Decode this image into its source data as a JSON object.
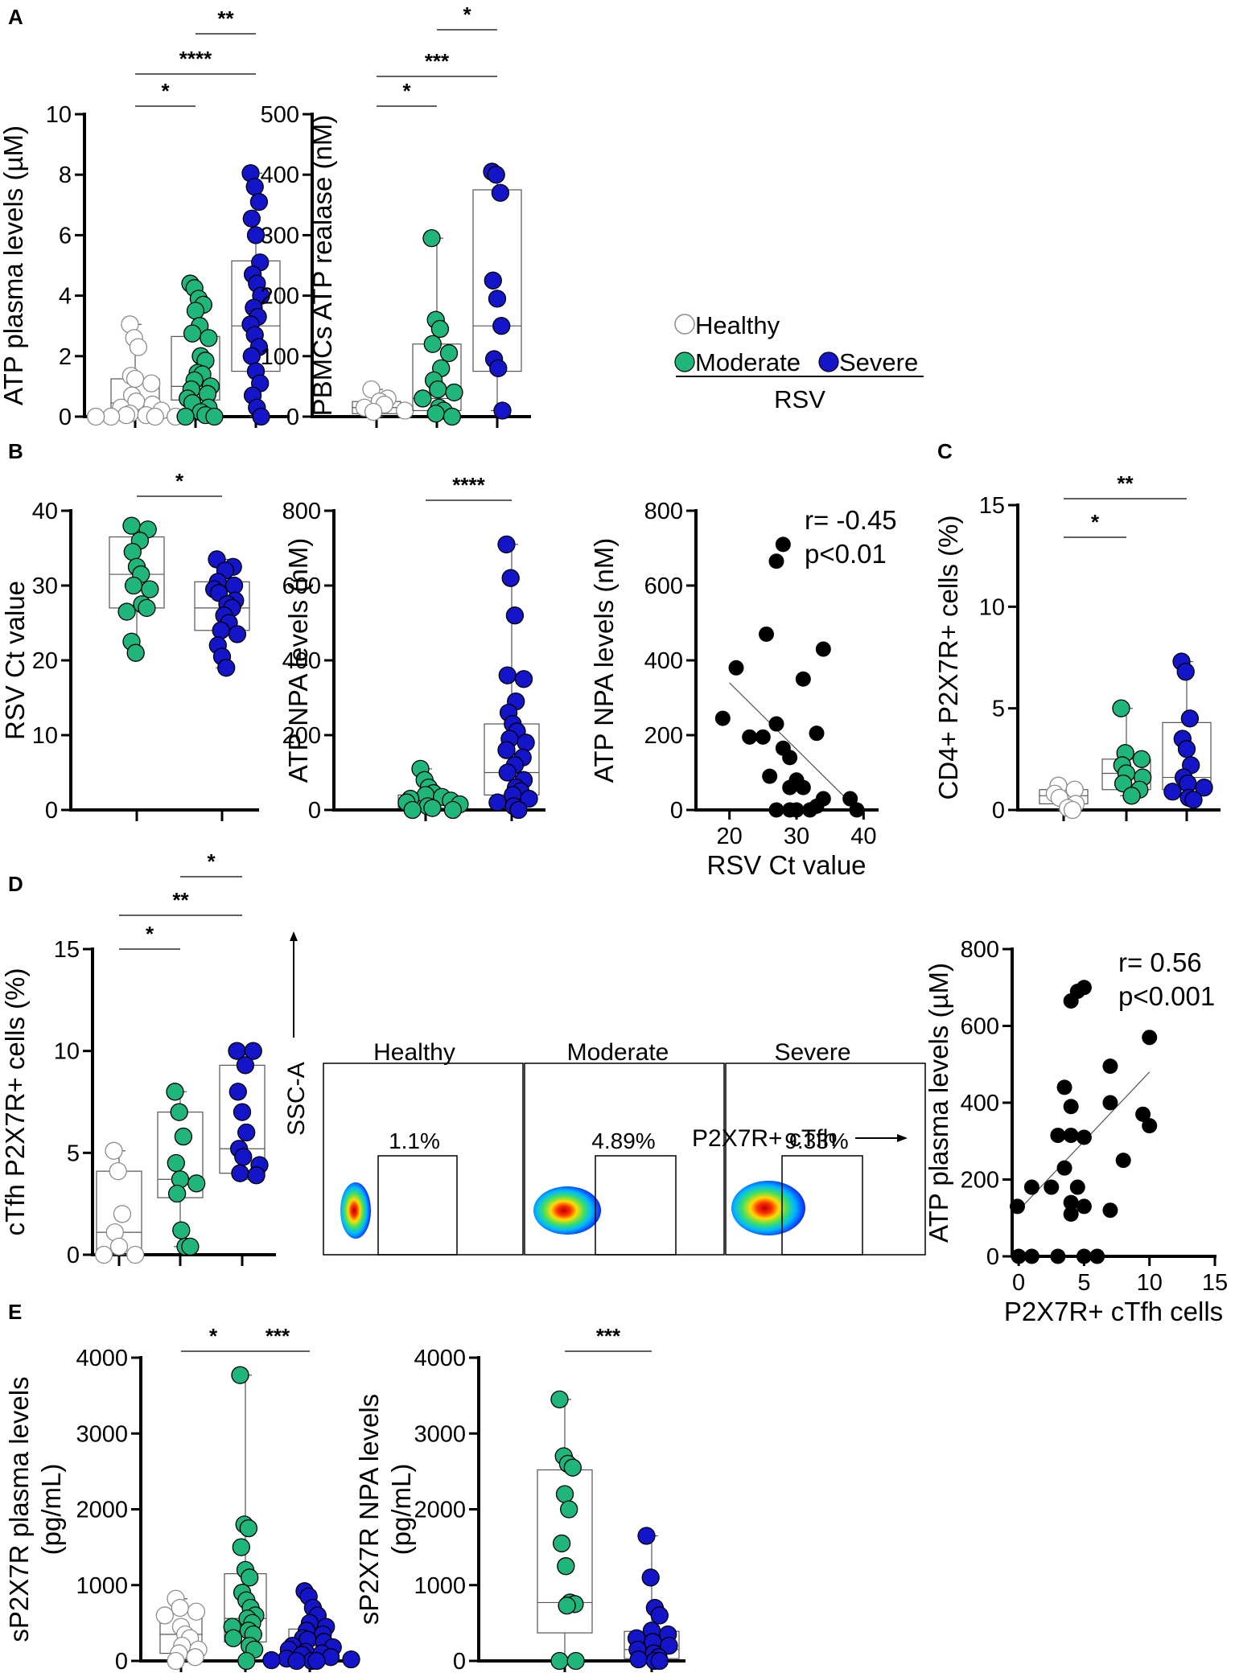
{
  "colors": {
    "healthy_fill": "#ffffff",
    "healthy_edge": "#8c8c8c",
    "moderate": "#20b57b",
    "severe": "#1414c8",
    "black": "#000000"
  },
  "panel_labels": {
    "A": "A",
    "B": "B",
    "C": "C",
    "D": "D",
    "E": "E"
  },
  "legend": {
    "healthy": "Healthy",
    "moderate": "Moderate",
    "severe": "Severe",
    "group": "RSV"
  },
  "flow": {
    "titles": [
      "Healthy",
      "Moderate",
      "Severe"
    ],
    "percents": [
      "1.1%",
      "4.89%",
      "9.33%"
    ],
    "ylabel": "SSC-A",
    "xlabel": "P2X7R+ cTfh"
  },
  "chart_data": [
    {
      "id": "A1",
      "type": "box_scatter",
      "ylabel": "ATP plasma levels (µM)",
      "ylim": [
        0,
        10
      ],
      "yticks": [
        0,
        2,
        4,
        6,
        8,
        10
      ],
      "groups": [
        {
          "name": "Healthy",
          "color": "healthy",
          "q1": 0.25,
          "median": 0.45,
          "q3": 1.25,
          "min": 0.0,
          "max": 3.05,
          "points": [
            3.05,
            2.6,
            2.3,
            1.35,
            1.25,
            1.1,
            0.7,
            0.5,
            0.4,
            0.3,
            0.2,
            0.1,
            0.05,
            0.05,
            0.0,
            0.0,
            0.0,
            0.0
          ]
        },
        {
          "name": "Moderate",
          "color": "moderate",
          "q1": 0.55,
          "median": 1.0,
          "q3": 2.65,
          "min": 0.0,
          "max": 4.4,
          "points": [
            4.4,
            4.25,
            3.9,
            3.7,
            3.5,
            3.0,
            2.75,
            2.6,
            2.0,
            1.85,
            1.45,
            1.4,
            1.2,
            1.0,
            0.9,
            0.75,
            0.6,
            0.45,
            0.3,
            0.15,
            0.05,
            0.0,
            0.0
          ]
        },
        {
          "name": "Severe",
          "color": "severe",
          "q1": 1.5,
          "median": 3.0,
          "q3": 5.15,
          "min": 0.0,
          "max": 8.05,
          "points": [
            8.05,
            7.6,
            7.1,
            6.55,
            6.0,
            5.1,
            4.7,
            4.4,
            4.0,
            3.6,
            3.3,
            3.05,
            2.7,
            2.3,
            2.0,
            1.5,
            1.1,
            0.7,
            0.3,
            0.0
          ]
        }
      ],
      "sig": [
        {
          "from": 0,
          "to": 1,
          "label": "*"
        },
        {
          "from": 0,
          "to": 2,
          "label": "****"
        },
        {
          "from": 1,
          "to": 2,
          "label": "**"
        }
      ]
    },
    {
      "id": "A2",
      "type": "box_scatter",
      "ylabel": "PBMCs ATP realase (nM)",
      "ylim": [
        0,
        500
      ],
      "yticks": [
        0,
        100,
        200,
        300,
        400,
        500
      ],
      "groups": [
        {
          "name": "Healthy",
          "color": "healthy",
          "q1": 5,
          "median": 15,
          "q3": 25,
          "min": 0,
          "max": 45,
          "points": [
            45,
            30,
            25,
            20,
            15,
            10,
            8
          ]
        },
        {
          "name": "Moderate",
          "color": "moderate",
          "q1": 10,
          "median": 30,
          "q3": 120,
          "min": 0,
          "max": 295,
          "points": [
            295,
            160,
            145,
            120,
            105,
            80,
            60,
            45,
            40,
            30,
            15,
            10,
            5,
            0
          ]
        },
        {
          "name": "Severe",
          "color": "severe",
          "q1": 75,
          "median": 150,
          "q3": 375,
          "min": 10,
          "max": 405,
          "points": [
            405,
            400,
            370,
            225,
            195,
            150,
            95,
            80,
            10
          ]
        }
      ],
      "sig": [
        {
          "from": 0,
          "to": 1,
          "label": "*"
        },
        {
          "from": 0,
          "to": 2,
          "label": "***"
        },
        {
          "from": 1,
          "to": 2,
          "label": "*"
        }
      ]
    },
    {
      "id": "B1",
      "type": "box_scatter",
      "ylabel": "RSV Ct value",
      "ylim": [
        0,
        40
      ],
      "yticks": [
        0,
        10,
        20,
        30,
        40
      ],
      "groups": [
        {
          "name": "Moderate",
          "color": "moderate",
          "q1": 27.0,
          "median": 31.5,
          "q3": 36.5,
          "min": 21.0,
          "max": 38.0,
          "points": [
            38.0,
            37.5,
            36.0,
            34.5,
            32.5,
            31.5,
            30.0,
            29.5,
            27.5,
            27.0,
            26.5,
            22.5,
            21.0
          ]
        },
        {
          "name": "Severe",
          "color": "severe",
          "q1": 24.0,
          "median": 27.0,
          "q3": 30.5,
          "min": 19.0,
          "max": 33.5,
          "points": [
            33.5,
            32.5,
            32.0,
            30.5,
            30.0,
            29.5,
            29.0,
            28.0,
            27.5,
            27.0,
            26.0,
            25.0,
            24.0,
            23.5,
            22.0,
            20.5,
            19.0
          ]
        }
      ],
      "sig": [
        {
          "from": 0,
          "to": 1,
          "label": "*"
        }
      ]
    },
    {
      "id": "B2",
      "type": "box_scatter",
      "ylabel": "ATP NPA levels (nM)",
      "ylim": [
        0,
        800
      ],
      "yticks": [
        0,
        200,
        400,
        600,
        800
      ],
      "groups": [
        {
          "name": "Moderate",
          "color": "moderate",
          "q1": 5,
          "median": 20,
          "q3": 40,
          "min": 0,
          "max": 110,
          "points": [
            110,
            80,
            60,
            45,
            40,
            35,
            30,
            25,
            20,
            15,
            10,
            5,
            0,
            0
          ]
        },
        {
          "name": "Severe",
          "color": "severe",
          "q1": 40,
          "median": 100,
          "q3": 230,
          "min": 0,
          "max": 710,
          "points": [
            710,
            620,
            520,
            360,
            350,
            290,
            260,
            230,
            210,
            190,
            180,
            160,
            140,
            120,
            100,
            80,
            60,
            50,
            40,
            30,
            20,
            10,
            0
          ]
        }
      ],
      "sig": [
        {
          "from": 0,
          "to": 1,
          "label": "****"
        }
      ]
    },
    {
      "id": "B3",
      "type": "scatter",
      "xlabel": "RSV Ct value",
      "ylabel": "ATP NPA levels (nM)",
      "xlim": [
        15,
        42
      ],
      "ylim": [
        0,
        800
      ],
      "xticks": [
        20,
        30,
        40
      ],
      "yticks": [
        0,
        200,
        400,
        600,
        800
      ],
      "r": "r= -0.45",
      "p": "p<0.01",
      "fit": [
        [
          20,
          340
        ],
        [
          38,
          20
        ]
      ],
      "points": [
        [
          28,
          710
        ],
        [
          27,
          665
        ],
        [
          25.5,
          470
        ],
        [
          34,
          430
        ],
        [
          21,
          380
        ],
        [
          31,
          350
        ],
        [
          19,
          245
        ],
        [
          27,
          230
        ],
        [
          23,
          195
        ],
        [
          25,
          195
        ],
        [
          33,
          205
        ],
        [
          28,
          165
        ],
        [
          29,
          140
        ],
        [
          26,
          90
        ],
        [
          30,
          80
        ],
        [
          29,
          60
        ],
        [
          31,
          60
        ],
        [
          34,
          30
        ],
        [
          27,
          0
        ],
        [
          29,
          0
        ],
        [
          30,
          0
        ],
        [
          32,
          0
        ],
        [
          33,
          10
        ],
        [
          38,
          30
        ],
        [
          39,
          0
        ]
      ]
    },
    {
      "id": "C",
      "type": "box_scatter",
      "ylabel": "CD4+ P2X7R+ cells (%)",
      "ylim": [
        0,
        15
      ],
      "yticks": [
        0,
        5,
        10,
        15
      ],
      "groups": [
        {
          "name": "Healthy",
          "color": "healthy",
          "q1": 0.3,
          "median": 0.7,
          "q3": 1.0,
          "min": 0.0,
          "max": 1.2,
          "points": [
            1.2,
            1.0,
            0.8,
            0.6,
            0.3,
            0.1,
            0.0
          ]
        },
        {
          "name": "Moderate",
          "color": "moderate",
          "q1": 1.0,
          "median": 1.8,
          "q3": 2.5,
          "min": 0.7,
          "max": 5.0,
          "points": [
            5.0,
            2.8,
            2.5,
            2.2,
            1.8,
            1.6,
            1.3,
            1.0,
            0.7
          ]
        },
        {
          "name": "Severe",
          "color": "severe",
          "q1": 1.0,
          "median": 1.6,
          "q3": 4.3,
          "min": 0.5,
          "max": 7.3,
          "points": [
            7.3,
            6.8,
            4.5,
            3.5,
            3.0,
            2.2,
            1.6,
            1.3,
            1.1,
            0.9,
            0.6,
            0.5
          ]
        }
      ],
      "sig": [
        {
          "from": 0,
          "to": 1,
          "label": "*"
        },
        {
          "from": 0,
          "to": 2,
          "label": "**"
        }
      ]
    },
    {
      "id": "D1",
      "type": "box_scatter",
      "ylabel": "cTfh P2X7R+ cells (%)",
      "ylim": [
        0,
        15
      ],
      "yticks": [
        0,
        5,
        10,
        15
      ],
      "groups": [
        {
          "name": "Healthy",
          "color": "healthy",
          "q1": 0.0,
          "median": 1.1,
          "q3": 4.1,
          "min": 0.0,
          "max": 5.1,
          "points": [
            5.1,
            4.1,
            2.0,
            1.1,
            0.4,
            0.0,
            0.0
          ]
        },
        {
          "name": "Moderate",
          "color": "moderate",
          "q1": 2.8,
          "median": 3.7,
          "q3": 7.0,
          "min": 0.4,
          "max": 8.0,
          "points": [
            8.0,
            7.0,
            5.8,
            4.5,
            3.7,
            3.5,
            3.0,
            1.2,
            0.4,
            0.4
          ]
        },
        {
          "name": "Severe",
          "color": "severe",
          "q1": 4.0,
          "median": 5.2,
          "q3": 9.3,
          "min": 3.7,
          "max": 10.0,
          "points": [
            10.0,
            10.0,
            9.3,
            8.0,
            7.0,
            6.0,
            5.2,
            4.8,
            4.4,
            4.0,
            3.9
          ]
        }
      ],
      "sig": [
        {
          "from": 0,
          "to": 1,
          "label": "*"
        },
        {
          "from": 0,
          "to": 2,
          "label": "**"
        },
        {
          "from": 1,
          "to": 2,
          "label": "*"
        }
      ]
    },
    {
      "id": "D3",
      "type": "scatter",
      "xlabel": "P2X7R+ cTfh cells",
      "ylabel": "ATP plasma levels (µM)",
      "xlim": [
        -0.5,
        15
      ],
      "ylim": [
        0,
        800
      ],
      "xticks": [
        0,
        5,
        10,
        15
      ],
      "yticks": [
        0,
        200,
        400,
        600,
        800
      ],
      "r": "r= 0.56",
      "p": "p<0.001",
      "fit": [
        [
          0,
          120
        ],
        [
          10,
          480
        ]
      ],
      "points": [
        [
          5,
          700
        ],
        [
          4.5,
          690
        ],
        [
          4,
          665
        ],
        [
          10,
          570
        ],
        [
          7,
          495
        ],
        [
          3.5,
          440
        ],
        [
          7,
          400
        ],
        [
          4,
          390
        ],
        [
          9.5,
          370
        ],
        [
          10,
          340
        ],
        [
          3,
          315
        ],
        [
          4,
          315
        ],
        [
          5,
          310
        ],
        [
          8,
          250
        ],
        [
          3.5,
          230
        ],
        [
          1,
          180
        ],
        [
          2.5,
          180
        ],
        [
          4.5,
          180
        ],
        [
          4,
          140
        ],
        [
          5,
          130
        ],
        [
          7,
          120
        ],
        [
          4,
          110
        ],
        [
          -0.1,
          130
        ],
        [
          0,
          0
        ],
        [
          1,
          0
        ],
        [
          3,
          0
        ],
        [
          5,
          0
        ],
        [
          6,
          0
        ]
      ]
    },
    {
      "id": "E1",
      "type": "box_scatter",
      "ylabel": "sP2X7R plasma levels (pg/mL)",
      "ylim": [
        0,
        4000
      ],
      "yticks": [
        0,
        1000,
        2000,
        3000,
        4000
      ],
      "groups": [
        {
          "name": "Healthy",
          "color": "healthy",
          "q1": 100,
          "median": 350,
          "q3": 650,
          "min": 0,
          "max": 820,
          "points": [
            820,
            700,
            650,
            600,
            450,
            350,
            300,
            200,
            150,
            100,
            50,
            0
          ]
        },
        {
          "name": "Moderate",
          "color": "moderate",
          "q1": 250,
          "median": 560,
          "q3": 1150,
          "min": 0,
          "max": 3770,
          "points": [
            3770,
            1800,
            1750,
            1500,
            1200,
            1100,
            900,
            800,
            700,
            600,
            560,
            500,
            450,
            400,
            350,
            300,
            200,
            150,
            0
          ]
        },
        {
          "name": "Severe",
          "color": "severe",
          "q1": 50,
          "median": 200,
          "q3": 420,
          "min": 0,
          "max": 920,
          "points": [
            920,
            850,
            700,
            600,
            500,
            450,
            400,
            350,
            300,
            280,
            250,
            200,
            180,
            150,
            120,
            100,
            80,
            50,
            30,
            20,
            10,
            0,
            0,
            0
          ]
        }
      ],
      "sig": [
        {
          "from": 0,
          "to": 1,
          "label": "*"
        },
        {
          "from": 1,
          "to": 2,
          "label": "***"
        }
      ]
    },
    {
      "id": "E2",
      "type": "box_scatter",
      "ylabel": "sP2X7R NPA levels (pg/mL)",
      "ylim": [
        0,
        4000
      ],
      "yticks": [
        0,
        1000,
        2000,
        3000,
        4000
      ],
      "groups": [
        {
          "name": "Moderate",
          "color": "moderate",
          "q1": 370,
          "median": 770,
          "q3": 2520,
          "min": 0,
          "max": 3450,
          "points": [
            3450,
            2700,
            2600,
            2550,
            2200,
            2000,
            1550,
            1250,
            770,
            750,
            730,
            0,
            0
          ]
        },
        {
          "name": "Severe",
          "color": "severe",
          "q1": 30,
          "median": 150,
          "q3": 390,
          "min": 0,
          "max": 1650,
          "points": [
            1650,
            1100,
            700,
            600,
            400,
            350,
            300,
            250,
            200,
            150,
            100,
            50,
            20,
            0,
            0
          ]
        }
      ],
      "sig": [
        {
          "from": 0,
          "to": 1,
          "label": "***"
        }
      ]
    }
  ]
}
